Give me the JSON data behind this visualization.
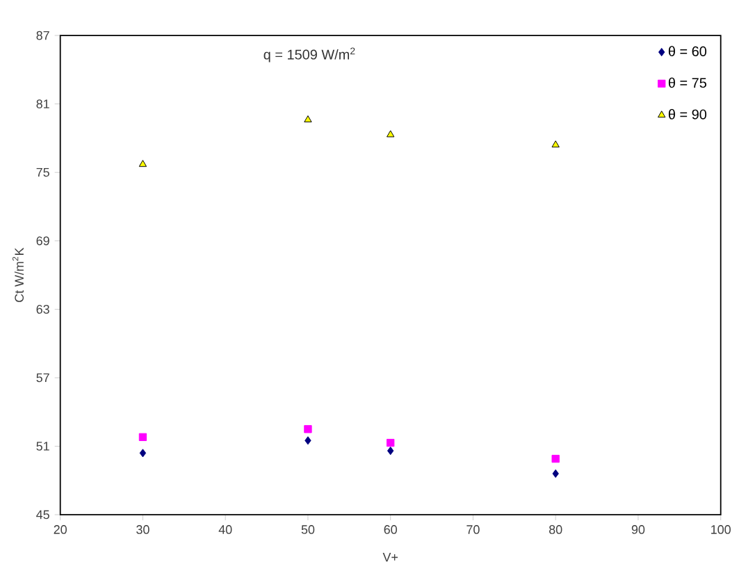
{
  "chart_data": {
    "type": "scatter",
    "xlabel": "V+",
    "ylabel": "Ct W/m$^{2}$K",
    "annotations": [
      "q = 1509 W/m$^{2}$"
    ],
    "x": [
      30,
      50,
      60,
      80
    ],
    "series": [
      {
        "name": "θ = 60",
        "color": "#000080",
        "marker": "diamond",
        "values": [
          50.4,
          51.5,
          50.6,
          48.6
        ]
      },
      {
        "name": "θ = 75",
        "color": "#ff00ff",
        "marker": "square",
        "values": [
          51.8,
          52.5,
          51.3,
          49.9
        ]
      },
      {
        "name": "θ = 90",
        "color": "#ffff00",
        "marker": "triangle",
        "values": [
          75.7,
          79.6,
          78.3,
          77.4
        ]
      }
    ],
    "xlim": [
      20,
      100
    ],
    "xticks": [
      20,
      30,
      40,
      50,
      60,
      70,
      80,
      90,
      100
    ],
    "ylim": [
      45,
      87
    ],
    "yticks": [
      45,
      51,
      57,
      63,
      69,
      75,
      81,
      87
    ],
    "grid": false,
    "legend": "top right"
  }
}
